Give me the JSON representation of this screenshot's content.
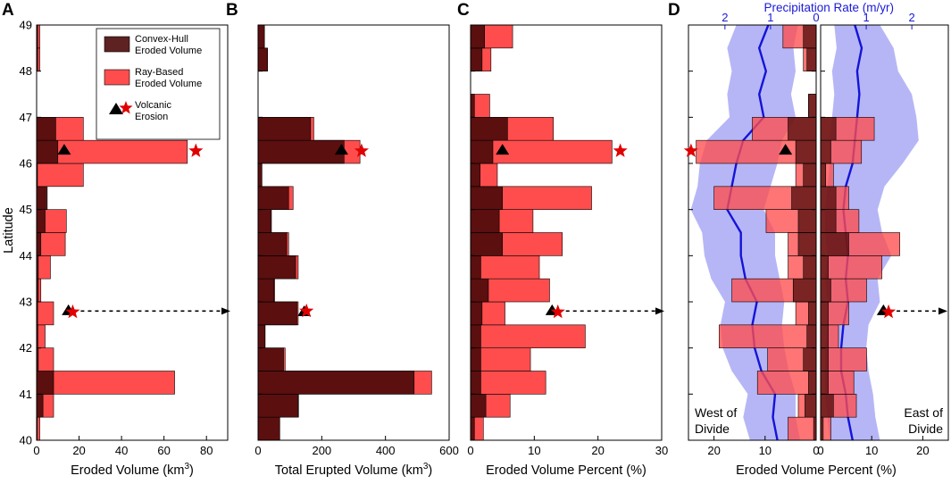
{
  "colors": {
    "hull": "#4d0a0a",
    "ray": "#ff4d4d",
    "ray_stroke": "#b00000",
    "star": "#e00000",
    "triangle": "#000000",
    "precip_band": "#a9a9f5",
    "precip_line": "#1414d8"
  },
  "legend": {
    "hull": "Convex-Hull Eroded Volume",
    "ray": "Ray-Based Eroded Volume",
    "volcanic": "Volcanic Erosion",
    "hull_lines": [
      "Convex-Hull",
      "Eroded Volume"
    ],
    "ray_lines": [
      "Ray-Based",
      "Eroded Volume"
    ],
    "volcanic_lines": [
      "Volcanic",
      "Erosion"
    ]
  },
  "shared_y": {
    "label": "Latitude",
    "range": [
      40,
      49
    ],
    "ticks": [
      "40",
      "41",
      "42",
      "43",
      "44",
      "45",
      "46",
      "47",
      "48",
      "49"
    ]
  },
  "chart_data": [
    {
      "panel": "A",
      "type": "bar",
      "orientation": "horizontal",
      "xlabel_main": "Eroded Volume (km",
      "xlabel_sup": "3",
      "xlabel_end": ")",
      "xlim": [
        0,
        90
      ],
      "xticks": [
        "0",
        "20",
        "40",
        "60",
        "80"
      ],
      "bins_lat": [
        40,
        40.5,
        41,
        41.5,
        42,
        42.5,
        43,
        43.5,
        44,
        44.5,
        45,
        45.5,
        46,
        46.5,
        47,
        47.5,
        48,
        48.5
      ],
      "series": [
        {
          "name": "Convex-Hull Eroded Volume",
          "values": [
            0.3,
            3,
            8,
            0.8,
            0.6,
            0.5,
            0.8,
            0.8,
            2,
            4,
            5,
            0.4,
            10,
            9,
            0,
            0,
            0.5,
            0.5
          ]
        },
        {
          "name": "Ray-Based Eroded Volume",
          "values": [
            1.5,
            8,
            65,
            8,
            4,
            8,
            2,
            6.5,
            13.5,
            14,
            4,
            22,
            71,
            22,
            0,
            0,
            1.5,
            1.5
          ]
        }
      ],
      "markers": [
        {
          "kind": "triangle",
          "lat": 46.3,
          "value": 13
        },
        {
          "kind": "star",
          "lat": 46.27,
          "value": 75
        },
        {
          "kind": "triangle",
          "lat": 42.82,
          "value": 15
        },
        {
          "kind": "star",
          "lat": 42.78,
          "value": 17
        }
      ],
      "arrow_lat": 42.8
    },
    {
      "panel": "B",
      "type": "bar",
      "orientation": "horizontal",
      "xlabel_main": "Total Erupted Volume (km",
      "xlabel_sup": "3",
      "xlabel_end": ")",
      "xlim": [
        0,
        600
      ],
      "xticks": [
        "0",
        "200",
        "400",
        "600"
      ],
      "bins_lat": [
        40,
        40.5,
        41,
        41.5,
        42,
        42.5,
        43,
        43.5,
        44,
        44.5,
        45,
        45.5,
        46,
        46.5,
        47,
        47.5,
        48,
        48.5
      ],
      "series": [
        {
          "name": "Convex-Hull Eroded Volume",
          "values": [
            68,
            125,
            490,
            80,
            22,
            122,
            50,
            118,
            90,
            40,
            96,
            12,
            270,
            165,
            0,
            0,
            30,
            20
          ]
        },
        {
          "name": "Ray-Based Eroded Volume",
          "values": [
            68,
            127,
            545,
            85,
            22,
            126,
            52,
            126,
            96,
            42,
            110,
            12,
            320,
            175,
            0,
            0,
            30,
            20
          ]
        }
      ],
      "markers": [
        {
          "kind": "triangle",
          "lat": 46.3,
          "value": 262
        },
        {
          "kind": "star",
          "lat": 46.27,
          "value": 325
        },
        {
          "kind": "triangle",
          "lat": 42.8,
          "value": 145
        },
        {
          "kind": "star",
          "lat": 42.8,
          "value": 152
        }
      ]
    },
    {
      "panel": "C",
      "type": "bar",
      "orientation": "horizontal",
      "xlabel": "Eroded Volume Percent (%)",
      "xlim": [
        0,
        30
      ],
      "xticks": [
        "0",
        "10",
        "20",
        "30"
      ],
      "bins_lat": [
        40,
        40.5,
        41,
        41.5,
        42,
        42.5,
        43,
        43.5,
        44,
        44.5,
        45,
        45.5,
        46,
        46.5,
        47,
        47.5,
        48,
        48.5
      ],
      "series": [
        {
          "name": "Convex-Hull Eroded Volume",
          "values": [
            0.6,
            2.4,
            1.6,
            1.6,
            1.6,
            1.8,
            2.8,
            1.6,
            5,
            4.5,
            5,
            1.5,
            3.5,
            5.8,
            0.6,
            0,
            1.8,
            2.2
          ]
        },
        {
          "name": "Ray-Based Eroded Volume",
          "values": [
            2,
            6.2,
            11.8,
            9.4,
            18,
            5.4,
            12.4,
            10.8,
            14.4,
            9.8,
            19,
            4.2,
            22.2,
            13,
            3,
            0,
            3.2,
            6.6
          ]
        }
      ],
      "markers": [
        {
          "kind": "triangle",
          "lat": 46.3,
          "value": 5
        },
        {
          "kind": "star",
          "lat": 46.27,
          "value": 23.5
        },
        {
          "kind": "triangle",
          "lat": 42.82,
          "value": 12.8
        },
        {
          "kind": "star",
          "lat": 42.78,
          "value": 13.7
        }
      ],
      "arrow_lat": 42.8
    },
    {
      "panel": "D-west",
      "type": "bar",
      "orientation": "horizontal",
      "xdirection": "reversed",
      "xlabel": "Eroded Volume Percent (%)",
      "xlim": [
        25,
        0
      ],
      "xticks": [
        "20",
        "10",
        "0"
      ],
      "side_note": [
        "West of",
        "Divide"
      ],
      "bins_lat": [
        40,
        40.5,
        41,
        41.5,
        42,
        42.5,
        43,
        43.5,
        44,
        44.5,
        45,
        45.5,
        46,
        46.5,
        47,
        47.5,
        48,
        48.5
      ],
      "series": [
        {
          "name": "Convex-Hull Eroded Volume",
          "values": [
            0.5,
            2.2,
            1.5,
            2.5,
            1.8,
            1.5,
            4.5,
            2.5,
            3.5,
            3.5,
            4.8,
            2.5,
            4,
            5.5,
            1.5,
            0,
            1.8,
            2.5
          ]
        },
        {
          "name": "Ray-Based Eroded Volume",
          "values": [
            5.5,
            3.5,
            11.5,
            9.5,
            19,
            4,
            16.5,
            5.5,
            5.5,
            9.8,
            20,
            4,
            23.5,
            12.5,
            1.5,
            0,
            2.5,
            6.5
          ]
        }
      ],
      "markers": [
        {
          "kind": "triangle",
          "lat": 46.3,
          "value": 6
        },
        {
          "kind": "star",
          "lat": 46.27,
          "value": 24.5
        }
      ]
    },
    {
      "panel": "D-east",
      "type": "bar",
      "orientation": "horizontal",
      "xlabel": "Eroded Volume Percent (%)",
      "xlim": [
        0,
        25
      ],
      "xticks": [
        "0",
        "10",
        "20"
      ],
      "side_note": [
        "East of",
        "Divide"
      ],
      "bins_lat": [
        40,
        40.5,
        41,
        41.5,
        42,
        42.5,
        43,
        43.5,
        44,
        44.5,
        45,
        45.5,
        46,
        46.5,
        47,
        47.5,
        48,
        48.5
      ],
      "series": [
        {
          "name": "Convex-Hull Eroded Volume",
          "values": [
            0.5,
            2.5,
            1.5,
            1.5,
            1.5,
            1.5,
            2,
            1.5,
            5.5,
            3,
            3,
            1,
            2,
            3,
            0,
            0,
            0,
            0
          ]
        },
        {
          "name": "Ray-Based Eroded Volume",
          "values": [
            2,
            7,
            6.5,
            9,
            3.5,
            5.5,
            9,
            12,
            15.5,
            7.5,
            5.5,
            2.5,
            8,
            10.5,
            0,
            0,
            0,
            0
          ]
        }
      ],
      "markers": [
        {
          "kind": "triangle",
          "lat": 42.82,
          "value": 12.3
        },
        {
          "kind": "star",
          "lat": 42.78,
          "value": 13.3
        }
      ],
      "arrow_lat": 42.8
    },
    {
      "panel": "D-precip",
      "type": "line",
      "title": "Precipitation Rate (m/yr)",
      "west_ticks": [
        "2",
        "1",
        "0"
      ],
      "east_ticks": [
        "1",
        "2"
      ],
      "west_xlim": [
        2.8,
        0
      ],
      "east_xlim": [
        0,
        2.8
      ],
      "lat": [
        40.0,
        40.5,
        41.0,
        41.5,
        42.0,
        42.5,
        43.0,
        43.5,
        44.0,
        44.5,
        45.0,
        45.5,
        46.0,
        46.5,
        47.0,
        47.5,
        48.0,
        48.5,
        49.0
      ],
      "west_mean": [
        0.85,
        0.95,
        0.9,
        1.2,
        1.35,
        1.4,
        1.3,
        1.55,
        1.65,
        1.65,
        1.95,
        1.85,
        1.75,
        1.6,
        1.15,
        1.25,
        1.1,
        1.25,
        1.05
      ],
      "west_low": [
        0.35,
        0.45,
        0.45,
        0.6,
        0.7,
        0.75,
        0.7,
        0.8,
        0.9,
        0.9,
        1.15,
        1.0,
        0.85,
        0.75,
        0.45,
        0.55,
        0.45,
        0.5,
        0.4
      ],
      "west_high": [
        1.45,
        1.6,
        1.5,
        1.85,
        2.05,
        2.1,
        2.0,
        2.3,
        2.45,
        2.5,
        2.75,
        2.6,
        2.55,
        2.4,
        1.9,
        1.95,
        1.85,
        1.95,
        1.75
      ],
      "east_mean": [
        0.7,
        0.6,
        0.55,
        0.45,
        0.45,
        0.5,
        0.6,
        0.55,
        0.6,
        0.55,
        0.5,
        0.55,
        0.7,
        0.75,
        0.8,
        0.85,
        0.8,
        0.9,
        0.75
      ],
      "east_low": [
        0.2,
        0.15,
        0.1,
        0.1,
        0.1,
        0.15,
        0.15,
        0.1,
        0.15,
        0.1,
        0.1,
        0.15,
        0.2,
        0.2,
        0.25,
        0.3,
        0.25,
        0.35,
        0.3
      ],
      "east_high": [
        1.3,
        1.2,
        1.15,
        1.05,
        1.0,
        1.05,
        1.3,
        1.25,
        1.55,
        1.35,
        1.25,
        1.4,
        1.8,
        2.15,
        2.1,
        2.0,
        1.7,
        1.6,
        1.3
      ]
    }
  ]
}
